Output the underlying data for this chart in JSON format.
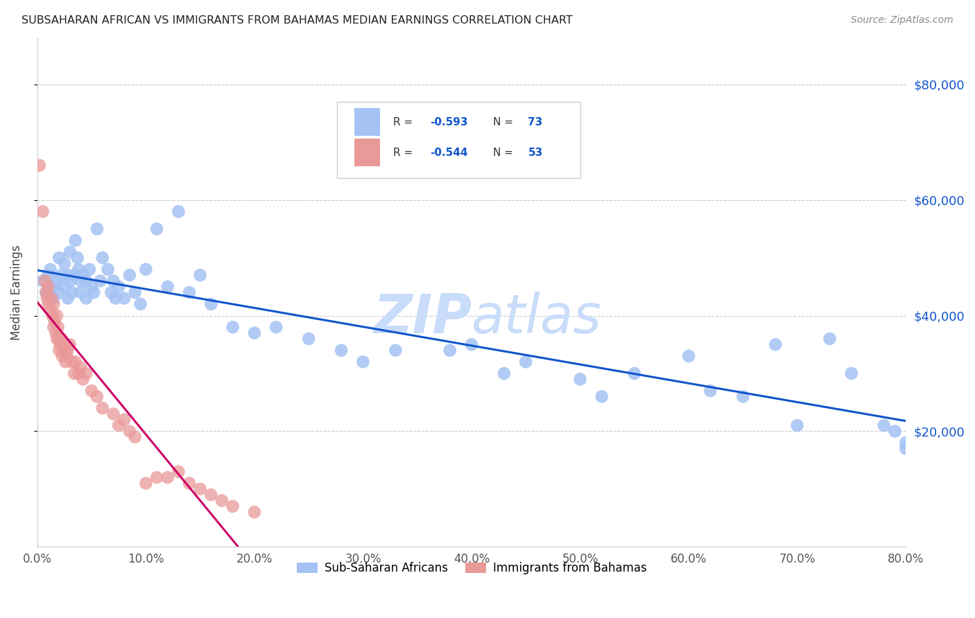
{
  "title": "SUBSAHARAN AFRICAN VS IMMIGRANTS FROM BAHAMAS MEDIAN EARNINGS CORRELATION CHART",
  "source_text": "Source: ZipAtlas.com",
  "ylabel": "Median Earnings",
  "xlabel_ticks": [
    "0.0%",
    "10.0%",
    "20.0%",
    "30.0%",
    "40.0%",
    "50.0%",
    "60.0%",
    "70.0%",
    "80.0%"
  ],
  "ytick_labels": [
    "$20,000",
    "$40,000",
    "$60,000",
    "$80,000"
  ],
  "ytick_values": [
    20000,
    40000,
    60000,
    80000
  ],
  "xlim": [
    0.0,
    0.8
  ],
  "ylim": [
    0,
    88000
  ],
  "blue_r": "-0.593",
  "blue_n": "73",
  "pink_r": "-0.544",
  "pink_n": "53",
  "legend_labels": [
    "Sub-Saharan Africans",
    "Immigrants from Bahamas"
  ],
  "blue_color": "#A4C2F4",
  "pink_color": "#EA9999",
  "blue_line_color": "#1155CC",
  "pink_line_color": "#CC0066",
  "grid_color": "#cccccc",
  "watermark_color": "#C9DCFA",
  "blue_scatter_x": [
    0.005,
    0.008,
    0.01,
    0.012,
    0.015,
    0.015,
    0.018,
    0.02,
    0.02,
    0.022,
    0.025,
    0.025,
    0.028,
    0.028,
    0.03,
    0.03,
    0.032,
    0.034,
    0.035,
    0.037,
    0.038,
    0.04,
    0.04,
    0.042,
    0.045,
    0.045,
    0.048,
    0.05,
    0.052,
    0.055,
    0.058,
    0.06,
    0.065,
    0.068,
    0.07,
    0.072,
    0.075,
    0.08,
    0.085,
    0.09,
    0.095,
    0.1,
    0.11,
    0.12,
    0.13,
    0.14,
    0.15,
    0.16,
    0.18,
    0.2,
    0.22,
    0.25,
    0.28,
    0.3,
    0.33,
    0.38,
    0.4,
    0.43,
    0.45,
    0.5,
    0.52,
    0.55,
    0.6,
    0.62,
    0.65,
    0.68,
    0.7,
    0.73,
    0.75,
    0.78,
    0.79,
    0.8,
    0.8
  ],
  "blue_scatter_y": [
    46000,
    44000,
    47000,
    48000,
    45000,
    43000,
    46000,
    50000,
    44000,
    47000,
    49000,
    45000,
    47000,
    43000,
    51000,
    46000,
    44000,
    47000,
    53000,
    50000,
    48000,
    46000,
    44000,
    47000,
    46000,
    43000,
    48000,
    45000,
    44000,
    55000,
    46000,
    50000,
    48000,
    44000,
    46000,
    43000,
    45000,
    43000,
    47000,
    44000,
    42000,
    48000,
    55000,
    45000,
    58000,
    44000,
    47000,
    42000,
    38000,
    37000,
    38000,
    36000,
    34000,
    32000,
    34000,
    34000,
    35000,
    30000,
    32000,
    29000,
    26000,
    30000,
    33000,
    27000,
    26000,
    35000,
    21000,
    36000,
    30000,
    21000,
    20000,
    18000,
    17000
  ],
  "pink_scatter_x": [
    0.002,
    0.005,
    0.007,
    0.008,
    0.009,
    0.01,
    0.01,
    0.012,
    0.013,
    0.014,
    0.015,
    0.015,
    0.016,
    0.017,
    0.018,
    0.018,
    0.019,
    0.02,
    0.02,
    0.021,
    0.022,
    0.023,
    0.024,
    0.025,
    0.026,
    0.027,
    0.028,
    0.03,
    0.032,
    0.034,
    0.035,
    0.038,
    0.04,
    0.042,
    0.045,
    0.05,
    0.055,
    0.06,
    0.07,
    0.075,
    0.08,
    0.085,
    0.09,
    0.1,
    0.11,
    0.12,
    0.13,
    0.14,
    0.15,
    0.16,
    0.17,
    0.18,
    0.2
  ],
  "pink_scatter_y": [
    66000,
    58000,
    46000,
    44000,
    43000,
    45000,
    42000,
    41000,
    43000,
    40000,
    42000,
    38000,
    39000,
    37000,
    40000,
    36000,
    38000,
    36000,
    34000,
    35000,
    36000,
    33000,
    34000,
    35000,
    32000,
    33000,
    34000,
    35000,
    32000,
    30000,
    32000,
    30000,
    31000,
    29000,
    30000,
    27000,
    26000,
    24000,
    23000,
    21000,
    22000,
    20000,
    19000,
    11000,
    12000,
    12000,
    13000,
    11000,
    10000,
    9000,
    8000,
    7000,
    6000
  ]
}
